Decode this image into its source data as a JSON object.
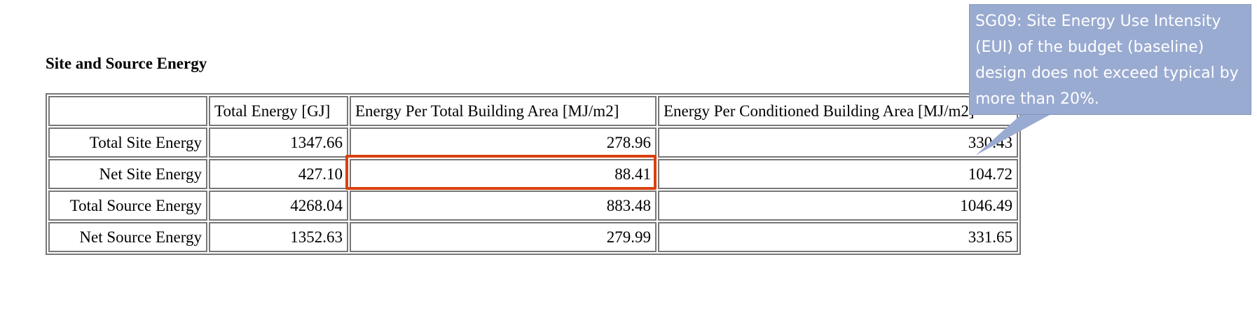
{
  "section_title": "Site and Source Energy",
  "table": {
    "headers": [
      "",
      "Total Energy [GJ]",
      "Energy Per Total Building Area [MJ/m2]",
      "Energy Per Conditioned Building Area [MJ/m2]"
    ],
    "rows": [
      {
        "label": "Total Site Energy",
        "values": [
          "1347.66",
          "278.96",
          "330.43"
        ]
      },
      {
        "label": "Net Site Energy",
        "values": [
          "427.10",
          "88.41",
          "104.72"
        ]
      },
      {
        "label": "Total Source Energy",
        "values": [
          "4268.04",
          "883.48",
          "1046.49"
        ]
      },
      {
        "label": "Net Source Energy",
        "values": [
          "1352.63",
          "279.99",
          "331.65"
        ]
      }
    ]
  },
  "annotation": {
    "text": "SG09: Site Energy Use Intensity (EUI) of the budget (baseline) design does not exceed typical by more than 20%.",
    "highlight_color": "#d94110",
    "callout_color": "#9aabd1"
  }
}
